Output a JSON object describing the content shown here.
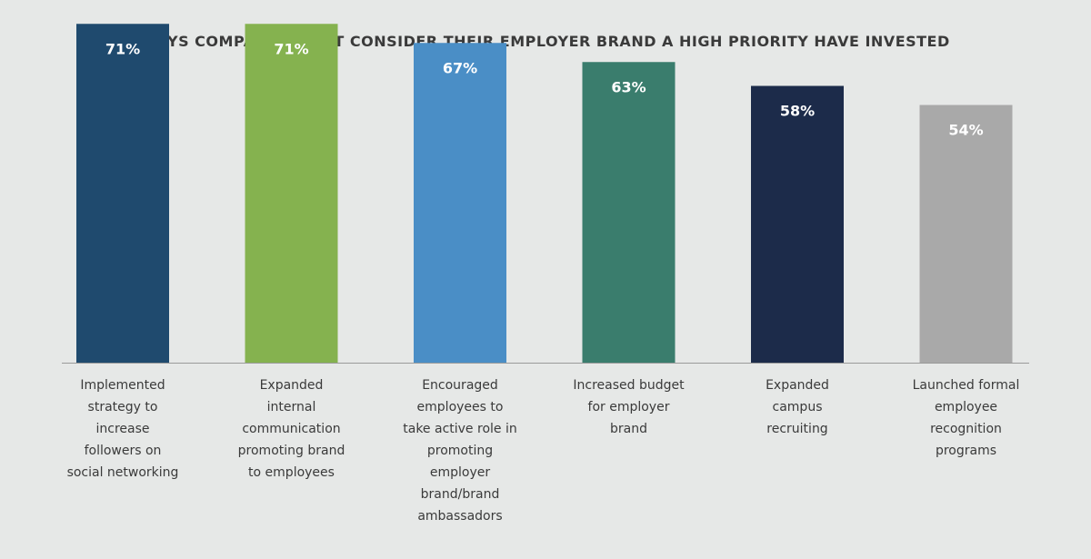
{
  "chart_data": {
    "type": "bar",
    "title": "WAYS COMPANIES THAT CONSIDER THEIR EMPLOYER BRAND A HIGH PRIORITY HAVE INVESTED",
    "xlabel": "",
    "ylabel": "",
    "ylim": [
      0,
      80
    ],
    "grid": false,
    "categories": [
      "Implemented strategy to increase followers on social networking",
      "Expanded internal communication promoting brand to employees",
      "Encouraged employees to take active role in promoting employer brand/brand ambassadors",
      "Increased budget for employer brand",
      "Expanded campus recruiting",
      "Launched formal employee recognition programs"
    ],
    "category_lines": [
      [
        "Implemented",
        "strategy to",
        "increase",
        "followers on",
        "social networking"
      ],
      [
        "Expanded",
        "internal",
        "communication",
        "promoting brand",
        "to employees"
      ],
      [
        "Encouraged",
        "employees to",
        "take active role in",
        "promoting",
        "employer",
        "brand/brand",
        "ambassadors"
      ],
      [
        "Increased budget",
        "for employer",
        "brand"
      ],
      [
        "Expanded",
        "campus",
        "recruiting"
      ],
      [
        "Launched formal",
        "employee",
        "recognition",
        "programs"
      ]
    ],
    "values": [
      71,
      71,
      67,
      63,
      58,
      54
    ],
    "value_labels": [
      "71%",
      "71%",
      "67%",
      "63%",
      "58%",
      "54%"
    ],
    "colors": [
      "#1f4a6e",
      "#85b24f",
      "#4a8ec6",
      "#3a7d6d",
      "#1c2b4a",
      "#a9a9a9"
    ]
  }
}
